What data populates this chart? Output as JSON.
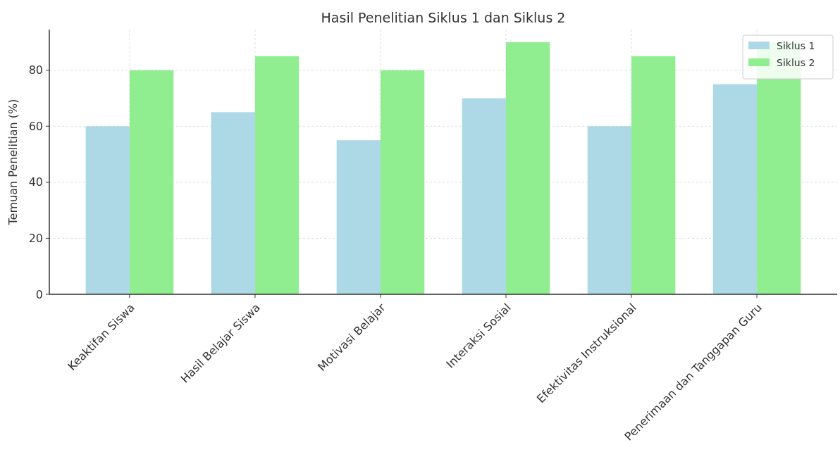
{
  "chart_data": {
    "type": "bar",
    "title": "Hasil Penelitian Siklus 1 dan Siklus 2",
    "ylabel": "Temuan Penelitian (%)",
    "categories": [
      "Keaktifan Siswa",
      "Hasil Belajar Siswa",
      "Motivasi Belajar",
      "Interaksi Sosial",
      "Efektivitas Instruksional",
      "Penerimaan dan Tanggapan Guru"
    ],
    "series": [
      {
        "name": "Siklus 1",
        "color": "#add8e6",
        "values": [
          60,
          65,
          55,
          70,
          60,
          75
        ]
      },
      {
        "name": "Siklus 2",
        "color": "#90ee90",
        "values": [
          80,
          85,
          80,
          90,
          85,
          90
        ]
      }
    ],
    "ylim": [
      0,
      94.5
    ],
    "yticks": [
      0,
      20,
      40,
      60,
      80
    ],
    "grid": true,
    "legend": "top right"
  }
}
